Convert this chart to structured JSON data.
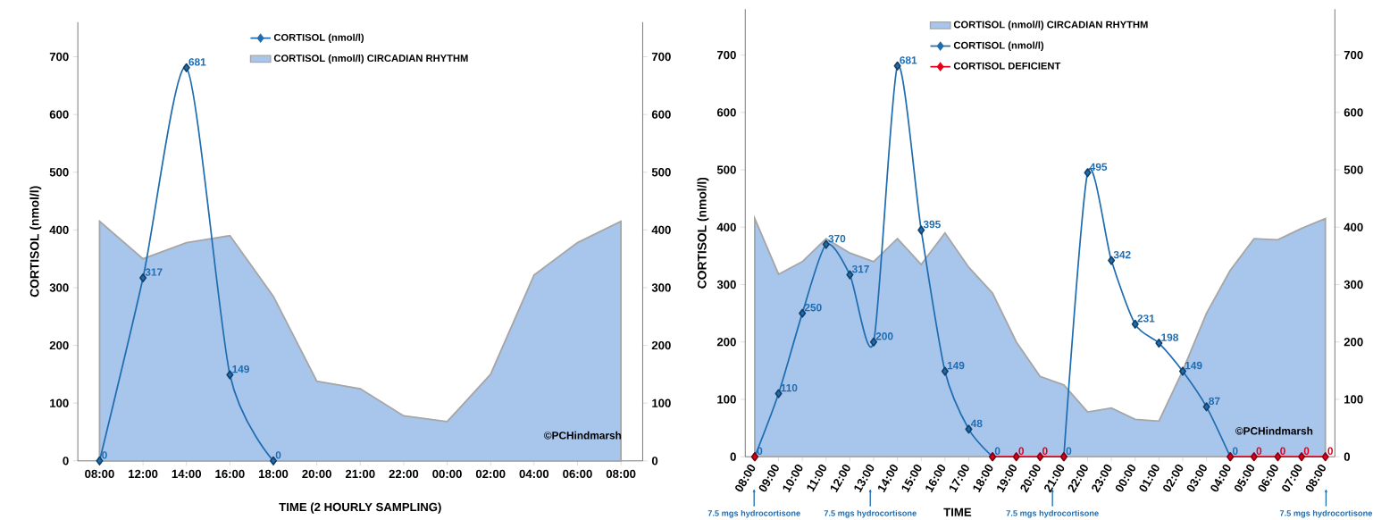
{
  "chart_data": [
    {
      "type": "line",
      "ylabel": "CORTISOL (nmol/l)",
      "xlabel": "TIME (2 HOURLY SAMPLING)",
      "categories": [
        "08:00",
        "12:00",
        "14:00",
        "16:00",
        "18:00",
        "20:00",
        "21:00",
        "22:00",
        "00:00",
        "02:00",
        "04:00",
        "06:00",
        "08:00"
      ],
      "series": [
        {
          "name": "CORTISOL (nmol/l)",
          "type": "line",
          "color": "#1f6db0",
          "marker": "diamond",
          "values": [
            0,
            317,
            681,
            149,
            0,
            null,
            null,
            null,
            null,
            null,
            null,
            null,
            null
          ],
          "value_labels": [
            "0",
            "317",
            "681",
            "149",
            "0",
            null,
            null,
            null,
            null,
            null,
            null,
            null,
            null
          ]
        },
        {
          "name": "CORTISOL (nmol/l) CIRCADIAN RHYTHM",
          "type": "area",
          "color": "#a8c5ec",
          "values": [
            415,
            350,
            378,
            390,
            285,
            138,
            125,
            78,
            68,
            150,
            322,
            378,
            415
          ]
        }
      ],
      "ylim": [
        0,
        760
      ],
      "yticks": [
        0,
        100,
        200,
        300,
        400,
        500,
        600,
        700
      ],
      "y2lim": [
        0,
        760
      ],
      "y2ticks": [
        0,
        100,
        200,
        300,
        400,
        500,
        600,
        700
      ],
      "legend": "top",
      "annotations": [
        "©PCHindmarsh"
      ]
    },
    {
      "type": "line",
      "ylabel": "CORTISOL (nmol/l)",
      "xlabel": "TIME",
      "categories": [
        "08:00",
        "09:00",
        "10:00",
        "11:00",
        "12:00",
        "13:00",
        "14:00",
        "15:00",
        "16:00",
        "17:00",
        "18:00",
        "19:00",
        "20:00",
        "21:00",
        "22:00",
        "23:00",
        "00:00",
        "01:00",
        "02:00",
        "03:00",
        "04:00",
        "05:00",
        "06:00",
        "07:00",
        "08:00"
      ],
      "series": [
        {
          "name": "CORTISOL (nmol/l) CIRCADIAN RHYTHM",
          "type": "area",
          "color": "#a8c5ec",
          "values": [
            415,
            318,
            340,
            380,
            355,
            340,
            380,
            335,
            390,
            330,
            285,
            200,
            140,
            125,
            78,
            85,
            65,
            62,
            150,
            250,
            325,
            380,
            378,
            398,
            415
          ]
        },
        {
          "name": "CORTISOL (nmol/l)",
          "type": "line",
          "color": "#1f6db0",
          "marker": "diamond",
          "values": [
            0,
            110,
            250,
            370,
            317,
            200,
            681,
            395,
            149,
            48,
            0,
            null,
            null,
            0,
            495,
            342,
            231,
            198,
            149,
            87,
            0,
            null,
            null,
            null,
            null
          ],
          "value_labels": [
            "0",
            "110",
            "250",
            "370",
            "317",
            "200",
            "681",
            "395",
            "149",
            "48",
            "0",
            null,
            null,
            "0",
            "495",
            "342",
            "231",
            "198",
            "149",
            "87",
            "0",
            null,
            null,
            null,
            null
          ]
        },
        {
          "name": "CORTISOL DEFICIENT",
          "type": "line",
          "color": "#e3001b",
          "marker": "diamond",
          "values": [
            0,
            null,
            null,
            null,
            null,
            null,
            null,
            null,
            null,
            null,
            0,
            0,
            0,
            0,
            null,
            null,
            null,
            null,
            null,
            null,
            0,
            0,
            0,
            0,
            0
          ],
          "value_labels": [
            null,
            null,
            null,
            null,
            null,
            null,
            null,
            null,
            null,
            null,
            null,
            "0",
            "0",
            null,
            null,
            null,
            null,
            null,
            null,
            null,
            null,
            "0",
            "0",
            "0",
            "0"
          ]
        }
      ],
      "ylim": [
        0,
        780
      ],
      "yticks": [
        0,
        100,
        200,
        300,
        400,
        500,
        600,
        700
      ],
      "y2lim": [
        0,
        780
      ],
      "y2ticks": [
        0,
        100,
        200,
        300,
        400,
        500,
        600,
        700
      ],
      "legend": "top",
      "annotations": [
        "7.5 mgs hydrocortisone",
        "7.5 mgs hydrocortisone",
        "7.5 mgs hydrocortisone",
        "7.5 mgs hydrocortisone",
        "©PCHindmarsh"
      ]
    }
  ]
}
